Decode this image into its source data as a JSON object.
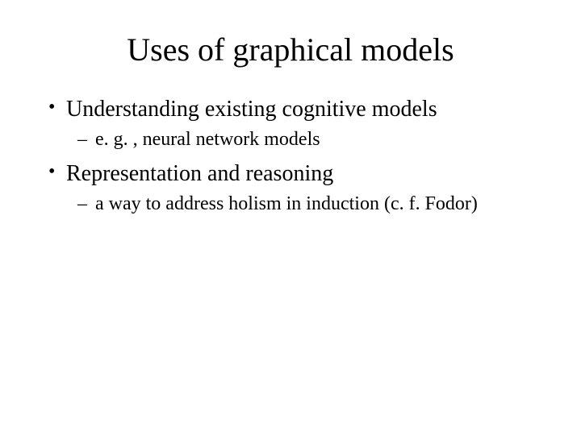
{
  "slide": {
    "title": "Uses of graphical models",
    "bullets": [
      {
        "text": "Understanding existing cognitive models",
        "sub": [
          "e. g. , neural network models"
        ]
      },
      {
        "text": "Representation and reasoning",
        "sub": [
          "a way to address holism in induction (c. f. Fodor)"
        ]
      }
    ]
  },
  "style": {
    "background_color": "#ffffff",
    "text_color": "#000000",
    "font_family": "Times New Roman",
    "title_fontsize": 40,
    "bullet_fontsize": 28,
    "sub_bullet_fontsize": 24
  }
}
